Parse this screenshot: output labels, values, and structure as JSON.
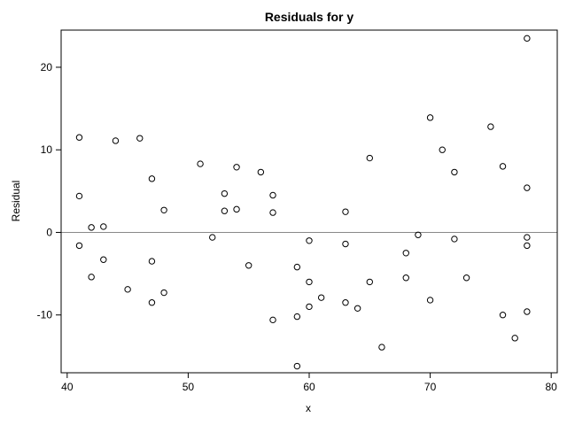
{
  "chart_data": {
    "type": "scatter",
    "title": "Residuals for y",
    "xlabel": "x",
    "ylabel": "Residual",
    "xlim": [
      39.5,
      80.5
    ],
    "ylim": [
      -17,
      24.5
    ],
    "x_ticks": [
      40,
      50,
      60,
      70,
      80
    ],
    "y_ticks": [
      -10,
      0,
      10,
      20
    ],
    "reference_line_y": 0,
    "grid": false,
    "legend": "none",
    "marker": "open-circle",
    "points": [
      {
        "x": 41,
        "y": 11.5
      },
      {
        "x": 41,
        "y": 4.4
      },
      {
        "x": 41,
        "y": -1.6
      },
      {
        "x": 42,
        "y": 0.6
      },
      {
        "x": 42,
        "y": -5.4
      },
      {
        "x": 43,
        "y": 0.7
      },
      {
        "x": 43,
        "y": -3.3
      },
      {
        "x": 44,
        "y": 11.1
      },
      {
        "x": 45,
        "y": -6.9
      },
      {
        "x": 46,
        "y": 11.4
      },
      {
        "x": 47,
        "y": 6.5
      },
      {
        "x": 47,
        "y": -3.5
      },
      {
        "x": 47,
        "y": -8.5
      },
      {
        "x": 48,
        "y": 2.7
      },
      {
        "x": 48,
        "y": -7.3
      },
      {
        "x": 51,
        "y": 8.3
      },
      {
        "x": 52,
        "y": -0.6
      },
      {
        "x": 53,
        "y": 4.7
      },
      {
        "x": 53,
        "y": 2.6
      },
      {
        "x": 54,
        "y": 7.9
      },
      {
        "x": 54,
        "y": 2.8
      },
      {
        "x": 55,
        "y": -4.0
      },
      {
        "x": 56,
        "y": 7.3
      },
      {
        "x": 57,
        "y": 4.5
      },
      {
        "x": 57,
        "y": 2.4
      },
      {
        "x": 57,
        "y": -10.6
      },
      {
        "x": 59,
        "y": -4.2
      },
      {
        "x": 59,
        "y": -10.2
      },
      {
        "x": 59,
        "y": -16.2
      },
      {
        "x": 60,
        "y": -1.0
      },
      {
        "x": 60,
        "y": -6.0
      },
      {
        "x": 60,
        "y": -9.0
      },
      {
        "x": 61,
        "y": -7.9
      },
      {
        "x": 63,
        "y": 2.5
      },
      {
        "x": 63,
        "y": -1.4
      },
      {
        "x": 63,
        "y": -8.5
      },
      {
        "x": 64,
        "y": -9.2
      },
      {
        "x": 65,
        "y": 9.0
      },
      {
        "x": 65,
        "y": -6.0
      },
      {
        "x": 66,
        "y": -13.9
      },
      {
        "x": 68,
        "y": -2.5
      },
      {
        "x": 68,
        "y": -5.5
      },
      {
        "x": 69,
        "y": -0.3
      },
      {
        "x": 70,
        "y": 13.9
      },
      {
        "x": 70,
        "y": -8.2
      },
      {
        "x": 71,
        "y": 10.0
      },
      {
        "x": 72,
        "y": 7.3
      },
      {
        "x": 72,
        "y": -0.8
      },
      {
        "x": 73,
        "y": -5.5
      },
      {
        "x": 75,
        "y": 12.8
      },
      {
        "x": 76,
        "y": 8.0
      },
      {
        "x": 76,
        "y": -10.0
      },
      {
        "x": 77,
        "y": -12.8
      },
      {
        "x": 78,
        "y": 23.5
      },
      {
        "x": 78,
        "y": 5.4
      },
      {
        "x": 78,
        "y": -0.6
      },
      {
        "x": 78,
        "y": -1.6
      },
      {
        "x": 78,
        "y": -9.6
      }
    ]
  }
}
